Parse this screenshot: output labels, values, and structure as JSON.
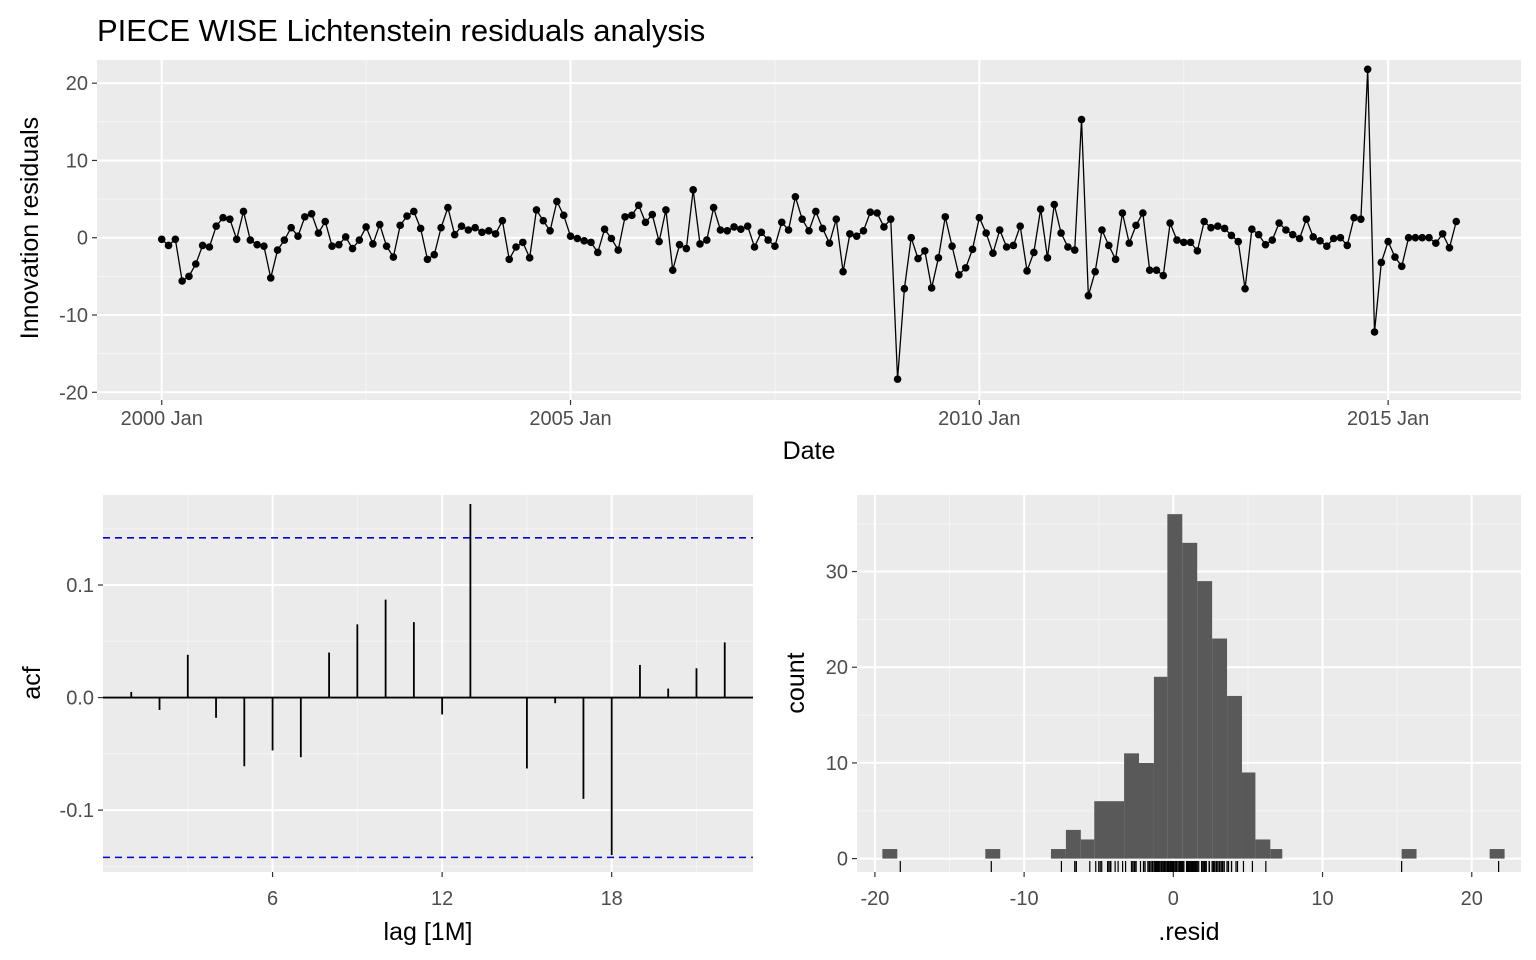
{
  "title": "PIECE WISE Lichtenstein residuals analysis",
  "chart_data": [
    {
      "type": "line",
      "name": "residuals-over-time",
      "xlabel": "Date",
      "ylabel": "Innovation residuals",
      "x_start": "2000 Jan",
      "x_frequency": "monthly",
      "x_ticks": [
        "2000 Jan",
        "2005 Jan",
        "2010 Jan",
        "2015 Jan"
      ],
      "y_ticks": [
        -20,
        -10,
        0,
        10,
        20
      ],
      "ylim": [
        -21,
        23
      ],
      "grid": true,
      "markers": true,
      "values": [
        -0.2,
        -1.0,
        -0.2,
        -5.6,
        -5.0,
        -3.4,
        -1.0,
        -1.2,
        1.5,
        2.6,
        2.4,
        -0.2,
        3.4,
        -0.3,
        -0.9,
        -1.1,
        -5.2,
        -1.6,
        -0.3,
        1.3,
        0.2,
        2.7,
        3.1,
        0.6,
        2.1,
        -1.1,
        -0.9,
        0.1,
        -1.4,
        -0.3,
        1.4,
        -0.8,
        1.7,
        -1.1,
        -2.5,
        1.6,
        2.8,
        3.4,
        1.2,
        -2.8,
        -2.2,
        1.3,
        3.9,
        0.4,
        1.5,
        1.0,
        1.3,
        0.7,
        0.9,
        0.5,
        2.2,
        -2.8,
        -1.2,
        -0.6,
        -2.6,
        3.6,
        2.2,
        0.9,
        4.7,
        2.9,
        0.2,
        -0.1,
        -0.4,
        -0.6,
        -1.9,
        1.1,
        -0.1,
        -1.6,
        2.7,
        2.9,
        4.2,
        2.0,
        3.0,
        -0.5,
        3.6,
        -4.2,
        -0.9,
        -1.4,
        6.2,
        -0.8,
        -0.3,
        3.9,
        1.0,
        0.9,
        1.4,
        1.1,
        1.5,
        -1.2,
        0.7,
        -0.3,
        -1.1,
        2.0,
        1.0,
        5.3,
        2.4,
        0.9,
        3.4,
        1.2,
        -0.7,
        2.4,
        -4.4,
        0.5,
        0.2,
        0.9,
        3.3,
        3.2,
        1.4,
        2.4,
        -18.3,
        -6.6,
        0.0,
        -2.7,
        -1.7,
        -6.5,
        -2.6,
        2.7,
        -1.1,
        -4.8,
        -3.9,
        -1.5,
        2.6,
        0.6,
        -2.0,
        1.0,
        -1.2,
        -1.0,
        1.5,
        -4.3,
        -1.9,
        3.7,
        -2.6,
        4.3,
        0.6,
        -1.2,
        -1.6,
        15.3,
        -7.5,
        -4.4,
        1.0,
        -1.0,
        -2.8,
        3.2,
        -0.7,
        1.6,
        3.2,
        -4.2,
        -4.2,
        -4.9,
        1.9,
        -0.3,
        -0.6,
        -0.6,
        -1.7,
        2.1,
        1.3,
        1.5,
        1.2,
        0.3,
        -0.5,
        -6.6,
        1.1,
        0.4,
        -0.9,
        -0.3,
        1.9,
        1.0,
        0.4,
        -0.1,
        2.4,
        0.1,
        -0.4,
        -1.1,
        -0.1,
        0.0,
        -1.0,
        2.6,
        2.4,
        21.8,
        -12.2,
        -3.2,
        -0.5,
        -2.5,
        -3.7,
        0.0,
        0.0,
        0.0,
        0.0,
        -0.7,
        0.5,
        -1.3,
        2.1
      ]
    },
    {
      "type": "bar",
      "name": "acf",
      "xlabel": "lag [1M]",
      "ylabel": "acf",
      "x_ticks": [
        6,
        12,
        18
      ],
      "y_ticks": [
        -0.1,
        0.0,
        0.1
      ],
      "ylim": [
        -0.155,
        0.18
      ],
      "xlim": [
        0,
        23
      ],
      "categories": [
        1,
        2,
        3,
        4,
        5,
        6,
        7,
        8,
        9,
        10,
        11,
        12,
        13,
        14,
        15,
        16,
        17,
        18,
        19,
        20,
        21,
        22
      ],
      "values": [
        0.005,
        -0.011,
        0.038,
        -0.018,
        -0.061,
        -0.047,
        -0.053,
        0.04,
        0.065,
        0.087,
        0.067,
        -0.015,
        0.172,
        0.0,
        -0.063,
        -0.005,
        -0.09,
        -0.14,
        0.029,
        0.008,
        0.026,
        0.049
      ],
      "confidence_bound": 0.142,
      "colors": {
        "bars": "#000000",
        "bounds": "#0000CC",
        "panel": "#EBEBEB"
      }
    },
    {
      "type": "histogram",
      "name": "residual-histogram",
      "xlabel": ".resid",
      "ylabel": "count",
      "x_ticks": [
        -20,
        -10,
        0,
        10,
        20
      ],
      "y_ticks": [
        0,
        10,
        20,
        30
      ],
      "xlim": [
        -21.2,
        23.3
      ],
      "ylim": [
        -1.4,
        38
      ],
      "bins": [
        {
          "start": -19.5,
          "end": -18.5,
          "count": 1
        },
        {
          "start": -12.6,
          "end": -11.6,
          "count": 1
        },
        {
          "start": -8.2,
          "end": -7.2,
          "count": 1
        },
        {
          "start": -7.2,
          "end": -6.2,
          "count": 3
        },
        {
          "start": -6.2,
          "end": -5.3,
          "count": 2
        },
        {
          "start": -5.3,
          "end": -3.3,
          "count": 6
        },
        {
          "start": -3.3,
          "end": -2.3,
          "count": 11
        },
        {
          "start": -2.3,
          "end": -1.3,
          "count": 10
        },
        {
          "start": -1.3,
          "end": -0.4,
          "count": 19
        },
        {
          "start": -0.4,
          "end": 0.6,
          "count": 36
        },
        {
          "start": 0.6,
          "end": 1.6,
          "count": 33
        },
        {
          "start": 1.6,
          "end": 2.6,
          "count": 29
        },
        {
          "start": 2.6,
          "end": 3.6,
          "count": 23
        },
        {
          "start": 3.6,
          "end": 4.6,
          "count": 17
        },
        {
          "start": 4.6,
          "end": 5.5,
          "count": 9
        },
        {
          "start": 5.5,
          "end": 6.5,
          "count": 2
        },
        {
          "start": 6.5,
          "end": 7.3,
          "count": 1
        },
        {
          "start": 15.3,
          "end": 16.3,
          "count": 1
        },
        {
          "start": 21.2,
          "end": 22.2,
          "count": 1
        }
      ],
      "rug": true,
      "colors": {
        "bars": "#595959",
        "panel": "#EBEBEB"
      }
    }
  ]
}
